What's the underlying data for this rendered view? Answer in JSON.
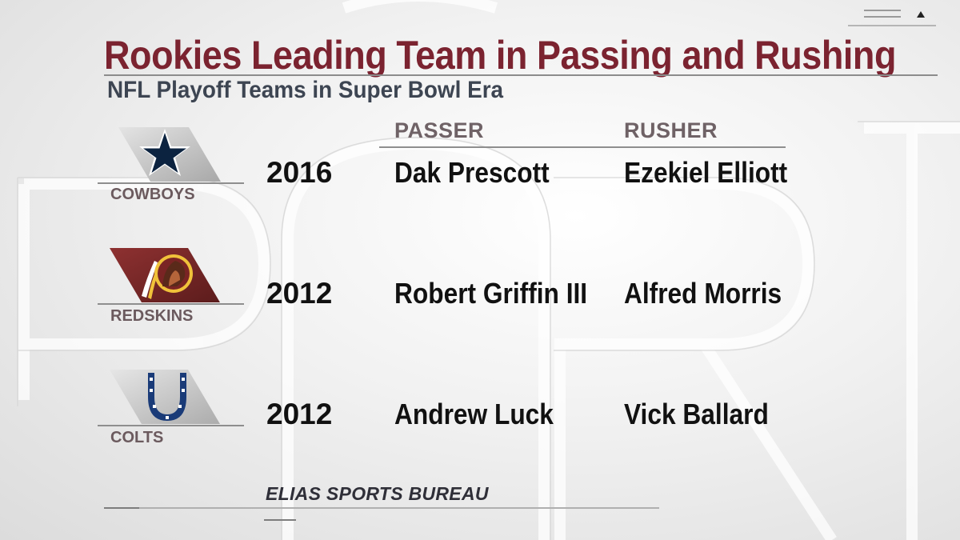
{
  "title": "Rookies Leading Team in Passing and Rushing",
  "subtitle": "NFL Playoff Teams in Super Bowl Era",
  "columns": {
    "passer": "PASSER",
    "rusher": "RUSHER"
  },
  "rows": [
    {
      "team": "COWBOYS",
      "logo_icon": "cowboys-star-icon",
      "year": "2016",
      "passer": "Dak Prescott",
      "rusher": "Ezekiel Elliott"
    },
    {
      "team": "REDSKINS",
      "logo_icon": "redskins-logo-icon",
      "year": "2012",
      "passer": "Robert Griffin III",
      "rusher": "Alfred Morris"
    },
    {
      "team": "COLTS",
      "logo_icon": "colts-horseshoe-icon",
      "year": "2012",
      "passer": "Andrew Luck",
      "rusher": "Vick Ballard"
    }
  ],
  "source": "ELIAS SPORTS BUREAU",
  "colors": {
    "title": "#7b2330",
    "subtitle": "#3d4552",
    "redskins_plate": "#7a2a2a",
    "cowboys_navy": "#0c2340",
    "colts_blue": "#1a3b78"
  }
}
